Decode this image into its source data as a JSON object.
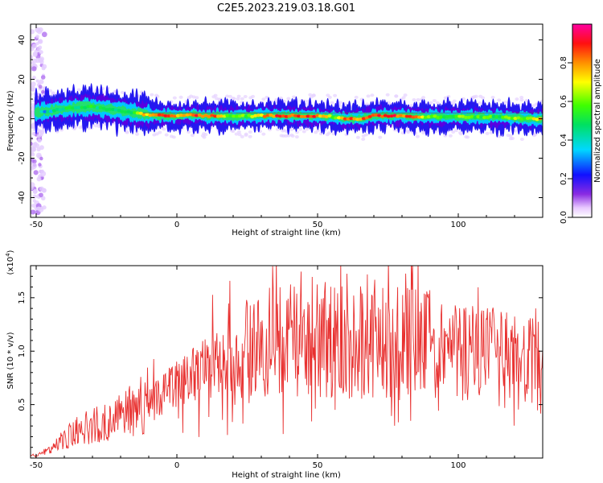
{
  "title": "C2E5.2023.219.03.18.G01",
  "chart_data": [
    {
      "type": "heatmap",
      "xlabel": "Height of straight line (km)",
      "ylabel": "Frequency (Hz)",
      "xlim": [
        -52,
        130
      ],
      "ylim": [
        -50,
        48
      ],
      "xticks": [
        -50,
        0,
        50,
        100
      ],
      "yticks": [
        -40,
        -20,
        0,
        20,
        40
      ],
      "colorbar": {
        "label": "Normalized spectral amplitude",
        "range": [
          0,
          1
        ],
        "ticks": [
          "0.0",
          "0.2",
          "0.4",
          "0.6",
          "0.8"
        ]
      },
      "ridge": {
        "x": [
          -50,
          -45,
          -40,
          -35,
          -30,
          -25,
          -20,
          -15,
          -10,
          -5,
          0,
          5,
          10,
          15,
          20,
          25,
          30,
          35,
          40,
          45,
          50,
          55,
          60,
          65,
          70,
          75,
          80,
          85,
          90,
          95,
          100,
          105,
          110,
          115,
          120,
          125,
          130
        ],
        "frequency": [
          3,
          4,
          5,
          6,
          6,
          5,
          4,
          3,
          2,
          1.5,
          1.5,
          2,
          1.5,
          1.5,
          1,
          1.5,
          1.5,
          1.5,
          1.5,
          1.5,
          1.5,
          1,
          0,
          0,
          1.5,
          1.5,
          1.5,
          1,
          1,
          1,
          1,
          1,
          1,
          1,
          0.5,
          0,
          0
        ],
        "amplitude": [
          0.3,
          0.4,
          0.45,
          0.5,
          0.5,
          0.48,
          0.45,
          0.55,
          0.8,
          0.85,
          0.8,
          0.85,
          0.85,
          0.8,
          0.55,
          0.6,
          0.75,
          0.85,
          0.85,
          0.85,
          0.85,
          0.6,
          0.85,
          0.8,
          0.85,
          0.9,
          0.85,
          0.8,
          0.55,
          0.55,
          0.6,
          0.55,
          0.55,
          0.55,
          0.6,
          0.6,
          0.85
        ]
      }
    },
    {
      "type": "line",
      "xlabel": "Height of straight line (km)",
      "ylabel": "SNR (10 * v/v)",
      "y_multiplier": "(x10",
      "y_multiplier_exp": "4",
      "y_multiplier_close": ")",
      "xlim": [
        -52,
        130
      ],
      "ylim": [
        0,
        18000
      ],
      "xticks": [
        -50,
        0,
        50,
        100
      ],
      "yticks": [
        "0.5",
        "1.0",
        "1.5"
      ],
      "ytick_values": [
        5000,
        10000,
        15000
      ],
      "series": [
        {
          "color": "#e8302f",
          "x": [
            -52,
            -50,
            -45,
            -40,
            -35,
            -30,
            -25,
            -20,
            -15,
            -10,
            -5,
            0,
            5,
            10,
            15,
            20,
            25,
            30,
            35,
            40,
            45,
            50,
            55,
            60,
            65,
            70,
            75,
            80,
            85,
            90,
            95,
            100,
            105,
            110,
            115,
            120,
            125,
            130
          ],
          "y": [
            200,
            300,
            800,
            1800,
            2600,
            3000,
            3500,
            4000,
            4300,
            5000,
            6000,
            6800,
            7600,
            8500,
            8800,
            9500,
            10000,
            10500,
            10800,
            11000,
            11000,
            11200,
            11000,
            10800,
            11000,
            11200,
            11000,
            11000,
            10800,
            10500,
            10000,
            10000,
            9800,
            9500,
            9300,
            9000,
            8800,
            8500
          ]
        }
      ]
    }
  ]
}
